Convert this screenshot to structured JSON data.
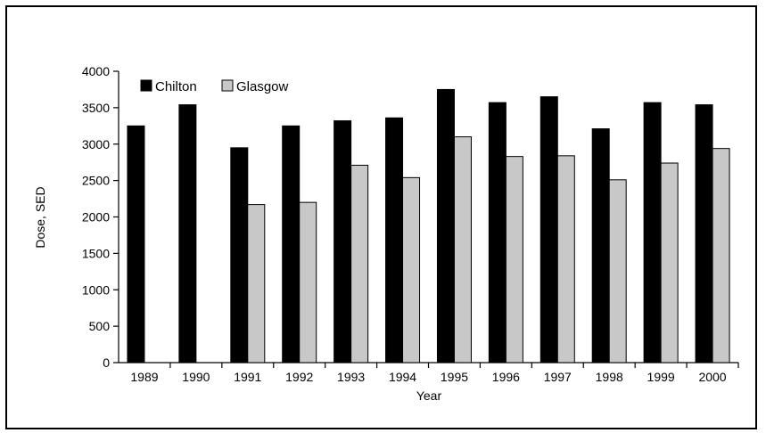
{
  "chart_data": {
    "type": "bar",
    "title": "",
    "xlabel": "Year",
    "ylabel": "Dose, SED",
    "ylim": [
      0,
      4000
    ],
    "yticks": [
      "0",
      "500",
      "1000",
      "1500",
      "2000",
      "2500",
      "3000",
      "3500",
      "4000"
    ],
    "categories": [
      "1989",
      "1990",
      "1991",
      "1992",
      "1993",
      "1994",
      "1995",
      "1996",
      "1997",
      "1998",
      "1999",
      "2000"
    ],
    "legend_position": "top-left",
    "series": [
      {
        "name": "Chilton",
        "color": "#000000",
        "values": [
          3250,
          3540,
          2950,
          3250,
          3320,
          3360,
          3750,
          3570,
          3650,
          3210,
          3570,
          3540
        ]
      },
      {
        "name": "Glasgow",
        "color": "#c8c8c8",
        "values": [
          null,
          null,
          2170,
          2200,
          2710,
          2540,
          3100,
          2830,
          2840,
          2510,
          2740,
          2940
        ]
      }
    ]
  }
}
